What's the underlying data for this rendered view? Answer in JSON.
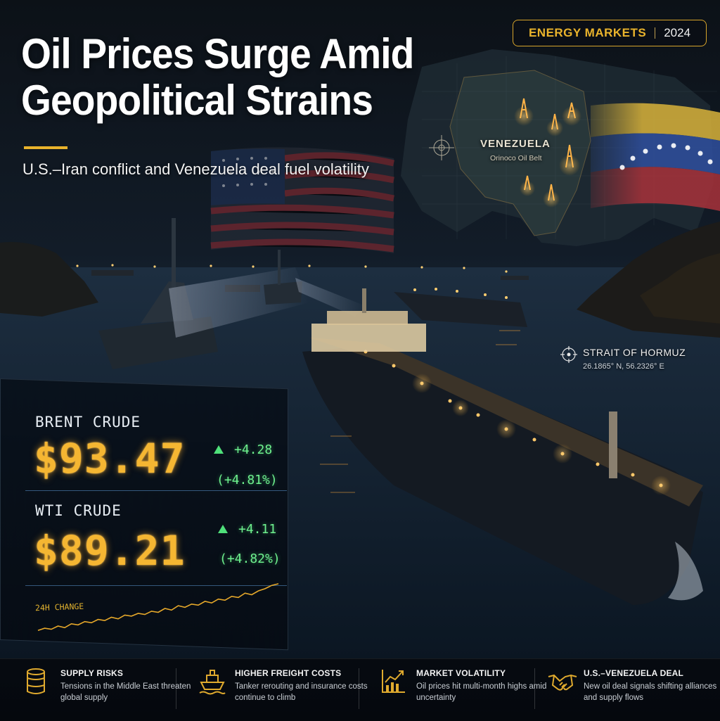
{
  "headline": {
    "line1": "Oil Prices Surge Amid",
    "line2": "Geopolitical Strains",
    "subtitle": "U.S.–Iran conflict and Venezuela deal fuel volatility"
  },
  "badge": {
    "label": "ENERGY MARKETS",
    "year": "2024"
  },
  "map": {
    "country": "VENEZUELA",
    "region": "Orinoco Oil Belt"
  },
  "strait": {
    "name": "STRAIT OF HORMUZ",
    "coords": "26.1865° N, 56.2326° E"
  },
  "ticker": {
    "brent": {
      "name": "BRENT CRUDE",
      "price": "$93.47",
      "change": "+4.28",
      "pct": "(+4.81%)"
    },
    "wti": {
      "name": "WTI CRUDE",
      "price": "$89.21",
      "change": "+4.11",
      "pct": "(+4.82%)"
    },
    "spark_label": "24H CHANGE",
    "spark_values": [
      0.1,
      0.14,
      0.12,
      0.18,
      0.15,
      0.22,
      0.2,
      0.26,
      0.24,
      0.3,
      0.28,
      0.34,
      0.31,
      0.38,
      0.36,
      0.41,
      0.39,
      0.45,
      0.43,
      0.5,
      0.47,
      0.55,
      0.52,
      0.58,
      0.56,
      0.63,
      0.6,
      0.67,
      0.65,
      0.72,
      0.7,
      0.78,
      0.75,
      0.82,
      0.86,
      0.92,
      0.95
    ]
  },
  "features": [
    {
      "icon": "oil-barrel-icon",
      "title": "SUPPLY RISKS",
      "desc": "Tensions in the Middle East threaten global supply"
    },
    {
      "icon": "cargo-ship-icon",
      "title": "HIGHER FREIGHT COSTS",
      "desc": "Tanker rerouting and insurance costs continue to climb"
    },
    {
      "icon": "rising-chart-icon",
      "title": "MARKET VOLATILITY",
      "desc": "Oil prices hit multi-month highs amid uncertainty"
    },
    {
      "icon": "handshake-icon",
      "title": "U.S.–VENEZUELA DEAL",
      "desc": "New oil deal signals shifting alliances and supply flows"
    }
  ],
  "colors": {
    "accent": "#e9b32c",
    "price": "#f5b632",
    "up": "#4fe07a",
    "background": "#0a121c"
  }
}
